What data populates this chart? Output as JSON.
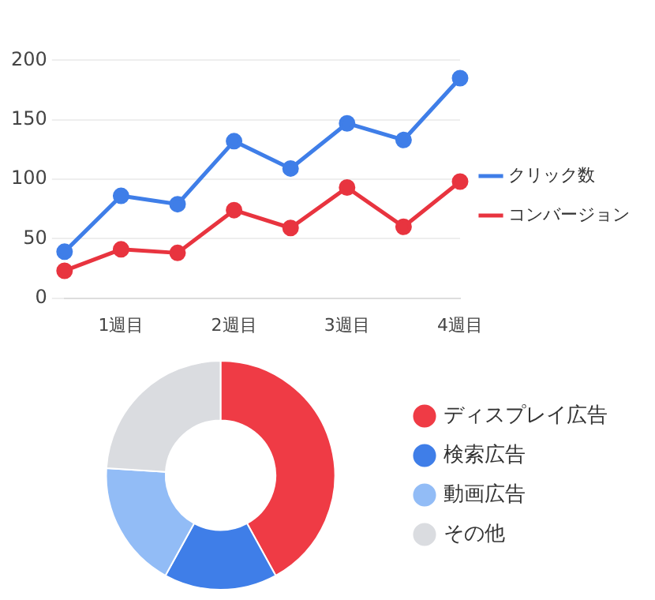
{
  "chart_data": [
    {
      "type": "line",
      "categories": [
        null,
        "1週目",
        null,
        "2週目",
        null,
        "3週目",
        null,
        "4週目"
      ],
      "series": [
        {
          "name": "クリック数",
          "color": "#3f7ee8",
          "values": [
            39,
            86,
            79,
            132,
            109,
            147,
            133,
            185
          ]
        },
        {
          "name": "コンバージョン",
          "color": "#e8343f",
          "values": [
            23,
            41,
            38,
            74,
            59,
            93,
            60,
            98
          ]
        }
      ],
      "ylim": [
        0,
        200
      ],
      "yticks": [
        0,
        50,
        100,
        150,
        200
      ],
      "grid": "y",
      "legend": "right",
      "marker": "circle",
      "line_style": "solid"
    },
    {
      "type": "donut",
      "categories": [
        "ディスプレイ広告",
        "検索広告",
        "動画広告",
        "その他"
      ],
      "values": [
        42,
        16,
        18,
        24
      ],
      "colors": [
        "#ef3b45",
        "#3f7ee8",
        "#92bcf6",
        "#dadce0"
      ],
      "legend": "right"
    }
  ]
}
